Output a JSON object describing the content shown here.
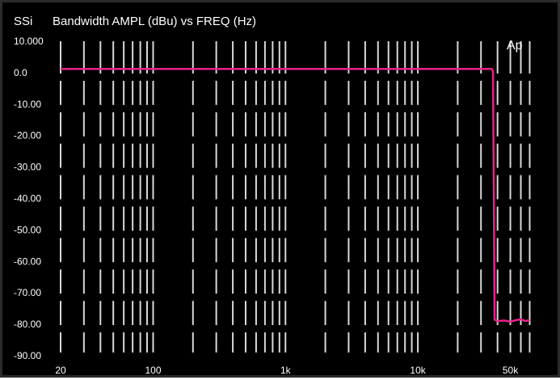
{
  "brand": "SSi",
  "watermark": "Ap",
  "chart_data": {
    "type": "line",
    "title": "Bandwidth AMPL (dBu) vs FREQ (Hz)",
    "xlabel": "",
    "ylabel": "",
    "x_scale": "log",
    "xlim": [
      20,
      80000
    ],
    "ylim": [
      -90,
      10
    ],
    "grid": true,
    "y_tick_labels": [
      "10.000",
      "0.0",
      "-10.00",
      "-20.00",
      "-30.00",
      "-40.00",
      "-50.00",
      "-60.00",
      "-70.00",
      "-80.00",
      "-90.00"
    ],
    "y_tick_values": [
      10,
      0,
      -10,
      -20,
      -30,
      -40,
      -50,
      -60,
      -70,
      -80,
      -90
    ],
    "x_tick_labels": [
      "20",
      "100",
      "1k",
      "10k",
      "50k"
    ],
    "x_tick_values": [
      20,
      100,
      1000,
      10000,
      50000
    ],
    "x_gridlines": [
      20,
      30,
      40,
      50,
      60,
      70,
      80,
      90,
      100,
      200,
      300,
      400,
      500,
      600,
      700,
      800,
      900,
      1000,
      2000,
      3000,
      4000,
      5000,
      6000,
      7000,
      8000,
      9000,
      10000,
      20000,
      30000,
      40000,
      50000,
      60000,
      70000
    ],
    "series": [
      {
        "color": "#e8228c",
        "x": [
          20,
          100,
          1000,
          10000,
          30000,
          36000,
          37000,
          37500,
          38000,
          40000,
          45000,
          50000,
          55000,
          60000,
          65000,
          70000
        ],
        "values": [
          1.2,
          1.2,
          1.2,
          1.2,
          1.2,
          1.2,
          0.5,
          -40,
          -78.5,
          -79,
          -78.8,
          -79.2,
          -78.7,
          -78.4,
          -79,
          -78.6
        ]
      }
    ]
  }
}
